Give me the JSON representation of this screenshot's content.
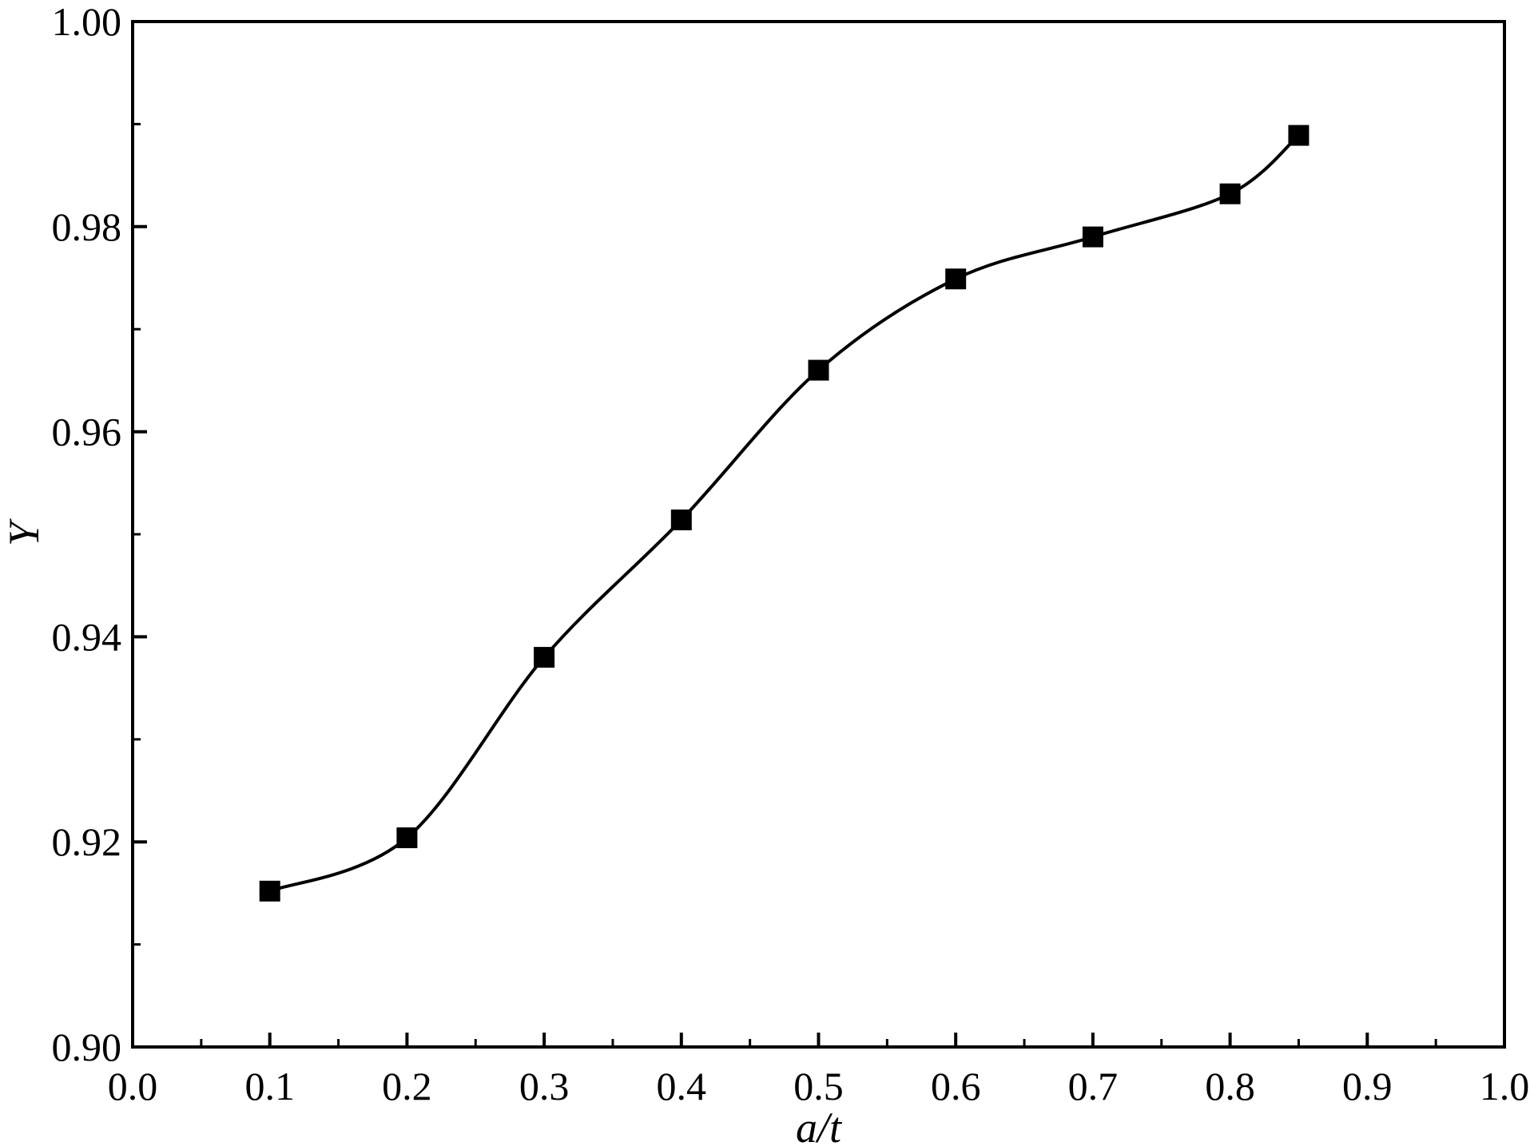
{
  "chart_data": {
    "type": "scatter",
    "title": "",
    "xlabel": "a/t",
    "ylabel": "Y",
    "xlim": [
      0.0,
      1.0
    ],
    "ylim": [
      0.9,
      1.0
    ],
    "x_ticks": [
      "0.0",
      "0.1",
      "0.2",
      "0.3",
      "0.4",
      "0.5",
      "0.6",
      "0.7",
      "0.8",
      "0.9",
      "1.0"
    ],
    "y_ticks": [
      "0.90",
      "0.92",
      "0.94",
      "0.96",
      "0.98",
      "1.00"
    ],
    "grid": false,
    "legend": "none",
    "marker": "filled-square",
    "color": "#000000",
    "series": [
      {
        "x": [
          0.1,
          0.2,
          0.3,
          0.4,
          0.5,
          0.6,
          0.7,
          0.8,
          0.85
        ],
        "y": [
          0.9152,
          0.9204,
          0.938,
          0.9514,
          0.966,
          0.9749,
          0.979,
          0.9832,
          0.9889
        ],
        "fit_curve": true
      }
    ]
  }
}
